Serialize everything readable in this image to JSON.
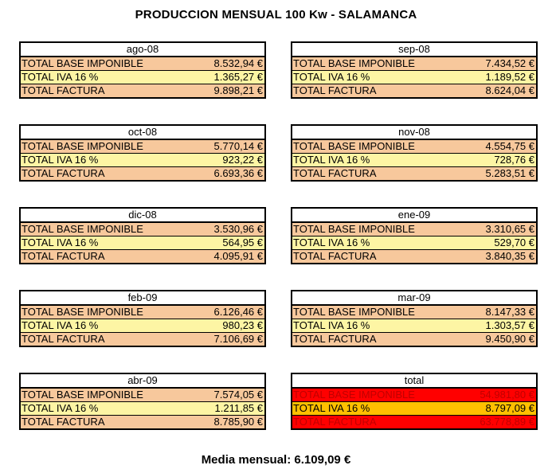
{
  "title": "PRODUCCION MENSUAL 100 Kw - SALAMANCA",
  "labels": {
    "base": "TOTAL BASE IMPONIBLE",
    "iva": "TOTAL IVA 16 %",
    "factura": "TOTAL FACTURA"
  },
  "months": [
    {
      "name": "ago-08",
      "base": "8.532,94 €",
      "iva": "1.365,27 €",
      "factura": "9.898,21 €"
    },
    {
      "name": "sep-08",
      "base": "7.434,52 €",
      "iva": "1.189,52 €",
      "factura": "8.624,04 €"
    },
    {
      "name": "oct-08",
      "base": "5.770,14 €",
      "iva": "923,22 €",
      "factura": "6.693,36 €"
    },
    {
      "name": "nov-08",
      "base": "4.554,75 €",
      "iva": "728,76 €",
      "factura": "5.283,51 €"
    },
    {
      "name": "dic-08",
      "base": "3.530,96 €",
      "iva": "564,95 €",
      "factura": "4.095,91 €"
    },
    {
      "name": "ene-09",
      "base": "3.310,65 €",
      "iva": "529,70 €",
      "factura": "3.840,35 €"
    },
    {
      "name": "feb-09",
      "base": "6.126,46 €",
      "iva": "980,23 €",
      "factura": "7.106,69 €"
    },
    {
      "name": "mar-09",
      "base": "8.147,33 €",
      "iva": "1.303,57 €",
      "factura": "9.450,90 €"
    },
    {
      "name": "abr-09",
      "base": "7.574,05 €",
      "iva": "1.211,85 €",
      "factura": "8.785,90 €"
    }
  ],
  "total": {
    "name": "total",
    "base": "54.981,80 €",
    "iva": "8.797,09 €",
    "factura": "63.778,89 €"
  },
  "media": "Media mensual:  6.109,09 €",
  "colors": {
    "row_base": "#f7c89c",
    "row_iva": "#fdf5a4",
    "total_red": "#ff0000",
    "total_orange": "#ffc000"
  }
}
